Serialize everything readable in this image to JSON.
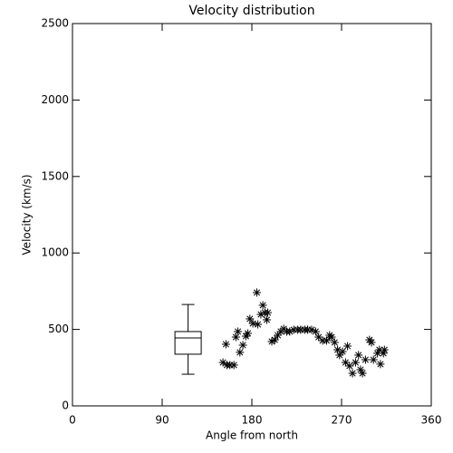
{
  "chart_data": {
    "type": "scatter",
    "title": "Velocity distribution",
    "x_label": "Angle from north",
    "y_label": "Velocity (km/s)",
    "xlim": [
      0,
      360
    ],
    "xticks": [
      0,
      90,
      180,
      270,
      360
    ],
    "ylim": [
      0,
      2500
    ],
    "yticks": [
      0,
      500,
      1000,
      1500,
      2000,
      2500
    ],
    "color": "#000000",
    "marker": "asterisk",
    "box": {
      "x": 116,
      "whisker_low": 207,
      "q1": 338,
      "median": 444,
      "q3": 486,
      "whisker_high": 663
    },
    "x": [
      151,
      155,
      158,
      162,
      154,
      164,
      166,
      168,
      171,
      174,
      176,
      178,
      181,
      185,
      186,
      189,
      191,
      193,
      195,
      196,
      200,
      203,
      206,
      209,
      212,
      215,
      218,
      222,
      226,
      229,
      233,
      236,
      240,
      244,
      247,
      251,
      255,
      258,
      260,
      263,
      266,
      268,
      271,
      274,
      276,
      278,
      281,
      284,
      287,
      289,
      291,
      294,
      298,
      300,
      302,
      306,
      308,
      309,
      312,
      313
    ],
    "y": [
      284,
      267,
      267,
      267,
      403,
      450,
      486,
      350,
      397,
      456,
      474,
      569,
      539,
      741,
      533,
      598,
      658,
      610,
      563,
      610,
      421,
      432,
      462,
      486,
      504,
      486,
      486,
      498,
      498,
      498,
      498,
      498,
      498,
      486,
      450,
      427,
      427,
      462,
      450,
      415,
      367,
      332,
      355,
      284,
      391,
      261,
      213,
      284,
      332,
      237,
      213,
      302,
      432,
      415,
      302,
      344,
      367,
      273,
      344,
      367
    ]
  }
}
